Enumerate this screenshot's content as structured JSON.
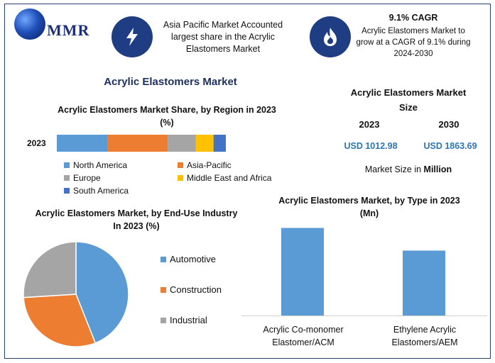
{
  "logo": {
    "text": "MMR"
  },
  "callout_left": {
    "icon": "lightning-icon",
    "text": "Asia Pacific Market Accounted largest share in the Acrylic Elastomers Market"
  },
  "callout_right": {
    "icon": "flame-icon",
    "heading": "9.1% CAGR",
    "text": "Acrylic Elastomers Market to grow at a CAGR of 9.1% during 2024-2030"
  },
  "main_title": "Acrylic Elastomers Market",
  "market_size": {
    "title_line1": "Acrylic Elastomers Market",
    "title_line2": "Size",
    "years": [
      "2023",
      "2030"
    ],
    "values": [
      "USD 1012.98",
      "USD 1863.69"
    ],
    "note_prefix": "Market Size in ",
    "note_unit": "Million"
  },
  "colors": {
    "north_america": "#5b9bd5",
    "asia_pacific": "#ed7d31",
    "europe": "#a5a5a5",
    "mea": "#ffc000",
    "south_america": "#4472c4",
    "navy": "#1f3d82"
  },
  "chart_data": [
    {
      "type": "bar",
      "orientation": "horizontal-stacked",
      "title": "Acrylic Elastomers Market Share, by Region in 2023 (%)",
      "categories": [
        "2023"
      ],
      "series": [
        {
          "name": "North America",
          "values": [
            29
          ]
        },
        {
          "name": "Asia-Pacific",
          "values": [
            34
          ]
        },
        {
          "name": "Europe",
          "values": [
            16
          ]
        },
        {
          "name": "Middle East and Africa",
          "values": [
            10
          ]
        },
        {
          "name": "South America",
          "values": [
            7
          ]
        }
      ]
    },
    {
      "type": "pie",
      "title": "Acrylic Elastomers Market, by End-Use Industry  In 2023 (%)",
      "labels": [
        "Automotive",
        "Construction",
        "Industrial"
      ],
      "values": [
        44,
        30,
        26
      ],
      "colors": [
        "#5b9bd5",
        "#ed7d31",
        "#a5a5a5"
      ]
    },
    {
      "type": "bar",
      "title": "Acrylic Elastomers Market, by Type in 2023 (Mn)",
      "categories": [
        "Acrylic Co-monomer Elastomer/ACM",
        "Ethylene Acrylic Elastomers/AEM"
      ],
      "values": [
        580,
        430
      ],
      "ylim": [
        0,
        620
      ],
      "color": "#5b9bd5"
    }
  ]
}
